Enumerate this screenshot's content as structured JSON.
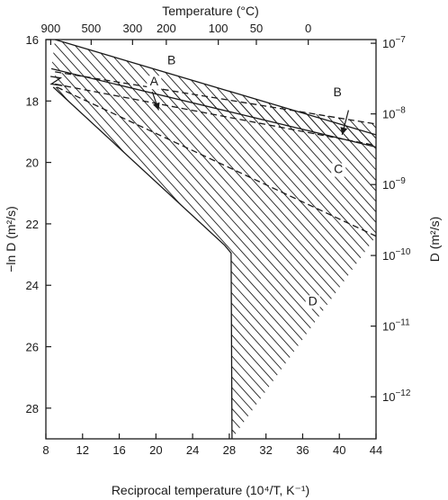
{
  "chart_data": {
    "type": "area",
    "title": "",
    "xlabel_bottom": "Reciprocal temperature (10⁴/T, K⁻¹)",
    "xlabel_top": "Temperature (°C)",
    "ylabel_left": "−ln D (m²/s)",
    "ylabel_right": "D (m²/s)",
    "xlim": [
      8,
      44
    ],
    "ylim": [
      29,
      16
    ],
    "x_ticks": [
      8,
      12,
      16,
      20,
      24,
      28,
      32,
      36,
      40,
      44
    ],
    "x_tick_labels": [
      "8",
      "12",
      "16",
      "20",
      "24",
      "28",
      "32",
      "36",
      "40",
      "44"
    ],
    "y_ticks": [
      16,
      18,
      20,
      22,
      24,
      26,
      28
    ],
    "y_tick_labels": [
      "16",
      "18",
      "20",
      "22",
      "24",
      "26",
      "28"
    ],
    "top_ticks": [
      {
        "x": 8.53,
        "label": "900"
      },
      {
        "x": 12.94,
        "label": "500"
      },
      {
        "x": 17.45,
        "label": "300"
      },
      {
        "x": 21.13,
        "label": "200"
      },
      {
        "x": 26.8,
        "label": "100"
      },
      {
        "x": 30.95,
        "label": "50"
      },
      {
        "x": 36.61,
        "label": "0"
      }
    ],
    "right_ticks": [
      {
        "y": 16.12,
        "base": "10",
        "exp": "−7"
      },
      {
        "y": 18.42,
        "base": "10",
        "exp": "−8"
      },
      {
        "y": 20.72,
        "base": "10",
        "exp": "−9"
      },
      {
        "y": 23.03,
        "base": "10",
        "exp": "−10"
      },
      {
        "y": 25.33,
        "base": "10",
        "exp": "−11"
      },
      {
        "y": 27.63,
        "base": "10",
        "exp": "−12"
      }
    ],
    "boundaries": [
      {
        "style": "solid",
        "points": [
          [
            9,
            16
          ],
          [
            44,
            19.1
          ]
        ]
      },
      {
        "style": "solid",
        "points": [
          [
            8.6,
            16.95
          ],
          [
            44,
            19.5
          ]
        ]
      },
      {
        "style": "dashed",
        "points": [
          [
            9,
            17.05
          ],
          [
            44,
            18.75
          ]
        ]
      },
      {
        "style": "dashed",
        "points": [
          [
            9,
            17.45
          ],
          [
            44,
            19.45
          ]
        ]
      },
      {
        "style": "dashed",
        "points": [
          [
            9.2,
            17.55
          ],
          [
            44,
            22.4
          ]
        ]
      },
      {
        "style": "solid",
        "points": [
          [
            8.8,
            17.55
          ],
          [
            27.5,
            22.7
          ],
          [
            28.2,
            22.95
          ],
          [
            28.3,
            29
          ]
        ]
      },
      {
        "style": "solid",
        "points": [
          [
            8.5,
            17.2
          ],
          [
            9.6,
            17.25
          ],
          [
            8.6,
            17.45
          ],
          [
            9.8,
            17.5
          ]
        ]
      }
    ],
    "regions": [
      {
        "label": "A",
        "x": 19.8,
        "y": 17.5
      },
      {
        "label": "B",
        "x": 21.7,
        "y": 16.8
      },
      {
        "label": "B",
        "x": 39.8,
        "y": 17.85
      },
      {
        "label": "C",
        "x": 39.9,
        "y": 20.35
      },
      {
        "label": "D",
        "x": 37.1,
        "y": 24.65
      }
    ],
    "arrows": [
      {
        "from": [
          19.6,
          17.7
        ],
        "to": [
          20.3,
          18.3
        ]
      },
      {
        "from": [
          41,
          18.3
        ],
        "to": [
          40.3,
          19.1
        ]
      }
    ],
    "hatch_regions": [
      {
        "name": "upper-band",
        "upper": [
          [
            9,
            16
          ],
          [
            44,
            19.1
          ]
        ],
        "lower": [
          [
            8.6,
            16.95
          ],
          [
            44,
            19.5
          ]
        ]
      },
      {
        "name": "middle-band",
        "upper": [
          [
            9,
            17.05
          ],
          [
            44,
            18.75
          ]
        ],
        "lower": [
          [
            9,
            17.45
          ],
          [
            44,
            19.45
          ]
        ]
      },
      {
        "name": "region-c",
        "upper": [
          [
            9,
            17.45
          ],
          [
            44,
            19.45
          ]
        ],
        "lower": [
          [
            9.2,
            17.55
          ],
          [
            44,
            22.4
          ]
        ]
      },
      {
        "name": "region-d",
        "upper": [
          [
            9.2,
            17.55
          ],
          [
            44,
            22.4
          ]
        ],
        "lower": [
          [
            8.8,
            17.55
          ],
          [
            27.5,
            22.7
          ],
          [
            28.2,
            22.95
          ],
          [
            28.3,
            29
          ]
        ]
      }
    ]
  }
}
